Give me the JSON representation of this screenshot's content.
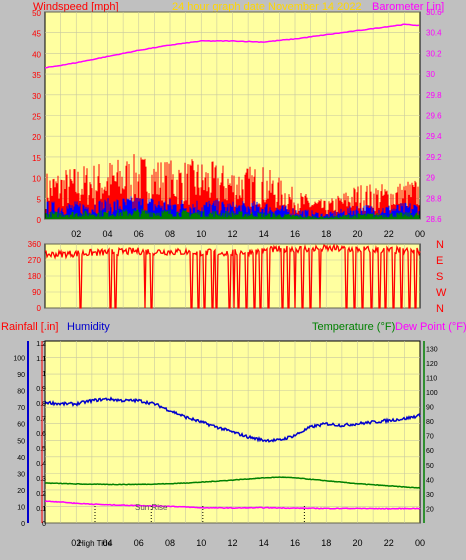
{
  "colors": {
    "background": "#c0c0c0",
    "plot": "#ffffa0",
    "grid": "#c8c8a0",
    "wind": "#ff0000",
    "gust": "#0000ff",
    "avg": "#008000",
    "baro": "#ff00ff",
    "title": "#ffd700",
    "rain": "#ff0000",
    "humidity": "#0000cc",
    "temp": "#008000",
    "dew": "#ff00ff",
    "direction": "#ff0000",
    "cardinal": "#ff0000"
  },
  "top": {
    "wind_label": "Windspeed [mph]",
    "title": "24 hour graph date   November 14 2022",
    "baro_label": "Barometer [.in]"
  },
  "bottom": {
    "rain_label": "Rainfall [.in]",
    "humidity_label": "Humidity",
    "temp_label": "Temperature (°F)",
    "dew_label": "Dew Point (°F)",
    "events": [
      {
        "label": "High Tide",
        "hour": 3.2
      },
      {
        "label": "Sun Rise",
        "hour": 6.8
      },
      {
        "label": "",
        "hour": 10.1
      },
      {
        "label": "",
        "hour": 16.6
      }
    ]
  },
  "cardinals": [
    "N",
    "W",
    "S",
    "E",
    "N"
  ],
  "x_tick_labels": [
    "02",
    "04",
    "06",
    "08",
    "10",
    "12",
    "14",
    "16",
    "18",
    "20",
    "22",
    "00"
  ],
  "chart_data": [
    {
      "type": "line",
      "title": "24 hour graph date   November 14 2022",
      "x_range_hours": [
        0,
        24
      ],
      "ylabel_left": "Windspeed [mph]",
      "ylim_left": [
        0,
        50
      ],
      "yticks_left": [
        "0",
        "5",
        "10",
        "15",
        "20",
        "25",
        "30",
        "35",
        "40",
        "45",
        "50"
      ],
      "ylabel_right": "Barometer [.in]",
      "ylim_right": [
        28.6,
        30.6
      ],
      "yticks_right": [
        "28.6",
        "28.8",
        "29",
        "29.2",
        "29.4",
        "29.6",
        "29.8",
        "30",
        "30.2",
        "30.4",
        "30.6"
      ],
      "grid": true,
      "series": [
        {
          "name": "Barometer [.in]",
          "axis": "right",
          "x": [
            0,
            2,
            4,
            6,
            8,
            10,
            12,
            14,
            16,
            18,
            20,
            22,
            23,
            24
          ],
          "values": [
            30.06,
            30.11,
            30.17,
            30.23,
            30.28,
            30.32,
            30.32,
            30.31,
            30.34,
            30.38,
            30.42,
            30.46,
            30.48,
            30.47
          ]
        },
        {
          "axis": "left",
          "style": "bars",
          "x": [
            0,
            2,
            4,
            6,
            8,
            10,
            12,
            14,
            16,
            17,
            18,
            20,
            22,
            24
          ],
          "values": [
            8,
            9,
            10,
            11,
            10,
            10,
            9,
            9,
            5,
            4,
            3,
            6,
            6,
            7
          ]
        },
        {
          "axis": "left",
          "style": "bars",
          "x": [
            0,
            2,
            4,
            6,
            8,
            10,
            12,
            14,
            16,
            17,
            18,
            20,
            22,
            24
          ],
          "values": [
            3,
            3,
            3.5,
            4,
            3.5,
            3.5,
            3,
            3,
            2,
            1.5,
            1,
            2.5,
            2.5,
            3
          ]
        },
        {
          "axis": "left",
          "style": "bars",
          "x": [
            0,
            2,
            4,
            6,
            8,
            10,
            12,
            14,
            16,
            17,
            18,
            20,
            22,
            24
          ],
          "values": [
            1.2,
            1.4,
            1.5,
            1.8,
            1.6,
            1.5,
            1.4,
            1.2,
            0.8,
            0.6,
            0.5,
            1,
            1.1,
            1.2
          ]
        }
      ]
    },
    {
      "type": "line",
      "x_range_hours": [
        0,
        24
      ],
      "ylim": [
        0,
        360
      ],
      "yticks": [
        "0",
        "90",
        "180",
        "270",
        "360"
      ],
      "grid": true,
      "series": [
        {
          "style": "direction",
          "baseline": [
            [
              0,
              300
            ],
            [
              3,
              310
            ],
            [
              6,
              320
            ],
            [
              9,
              315
            ],
            [
              12,
              310
            ],
            [
              15,
              330
            ],
            [
              18,
              335
            ],
            [
              24,
              320
            ]
          ],
          "drops_to_zero_near_hours": [
            2.3,
            4.2,
            4.5,
            6.4,
            6.8,
            9.4,
            9.8,
            10.2,
            10.7,
            11.0,
            11.8,
            12.1,
            12.4,
            12.9,
            13.4,
            13.8,
            14.3,
            15.2,
            15.6,
            16.0,
            16.5,
            17.0,
            17.6,
            19.3,
            19.8,
            20.3,
            20.9,
            21.4,
            21.8,
            22.3,
            22.8,
            23.3,
            23.7
          ]
        }
      ]
    },
    {
      "type": "line",
      "x_range_hours": [
        0,
        24
      ],
      "ylabel_left": "Rainfall [.in]",
      "yticks_rain": [
        "0",
        "0.1",
        "0.2",
        "0.3",
        "0.4",
        "0.5",
        "0.6",
        "0.7",
        "0.8",
        "0.9",
        "1",
        "1.1",
        "1.2"
      ],
      "ylim_rain": [
        0,
        1.2
      ],
      "yticks_humidity": [
        "0",
        "10",
        "20",
        "30",
        "40",
        "50",
        "60",
        "70",
        "80",
        "90",
        "100"
      ],
      "ylim_humidity": [
        0,
        110
      ],
      "ylabel_right": "Temperature (°F)  Dew Point (°F)",
      "yticks_temp": [
        "20",
        "30",
        "40",
        "50",
        "60",
        "70",
        "80",
        "90",
        "100",
        "110",
        "120",
        "130"
      ],
      "ylim_temp": [
        10,
        135
      ],
      "grid": true,
      "series": [
        {
          "name": "Humidity",
          "axis": "humidity",
          "x": [
            0,
            1,
            2,
            3,
            4,
            5,
            6,
            7,
            8,
            9,
            10,
            11,
            12,
            13,
            14,
            15,
            16,
            17,
            18,
            19,
            20,
            21,
            22,
            23,
            24
          ],
          "values": [
            73,
            72,
            72,
            74,
            75,
            74,
            74,
            72,
            68,
            64,
            61,
            58,
            55,
            52,
            50,
            50,
            53,
            58,
            60,
            59,
            60,
            61,
            62,
            63,
            65
          ]
        },
        {
          "name": "Temperature (°F)",
          "axis": "temp",
          "x": [
            0,
            2,
            4,
            6,
            8,
            10,
            12,
            14,
            15,
            16,
            18,
            20,
            22,
            24
          ],
          "values": [
            37.5,
            36.8,
            36.5,
            36.5,
            37.0,
            38.0,
            39.5,
            41.0,
            41.5,
            41.0,
            39.0,
            37.0,
            35.5,
            34.0
          ]
        },
        {
          "name": "Dew Point (°F)",
          "axis": "temp",
          "x": [
            0,
            1,
            2,
            4,
            6,
            8,
            10,
            12,
            14,
            16,
            18,
            20,
            22,
            24
          ],
          "values": [
            25,
            24.5,
            23.5,
            22.5,
            22,
            21.5,
            20.5,
            20.3,
            20.5,
            20.2,
            20.0,
            20.0,
            19.8,
            20.0
          ]
        },
        {
          "name": "Rainfall [.in]",
          "axis": "rain",
          "x": [
            0,
            24
          ],
          "values": [
            0,
            0
          ]
        }
      ]
    }
  ]
}
